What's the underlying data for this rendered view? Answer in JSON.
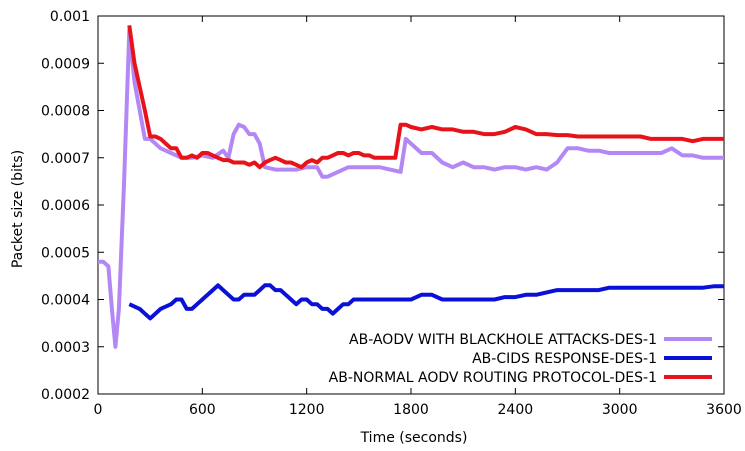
{
  "chart_data": {
    "type": "line",
    "xlabel": "Time (seconds)",
    "ylabel": "Packet size (bits)",
    "xlim": [
      0,
      3600
    ],
    "ylim": [
      0.0002,
      0.001
    ],
    "xticks": [
      0,
      600,
      1200,
      1800,
      2400,
      3000,
      3600
    ],
    "yticks": [
      0.0002,
      0.0003,
      0.0004,
      0.0005,
      0.0006,
      0.0007,
      0.0008,
      0.0009,
      0.001
    ],
    "xtick_labels": [
      "0",
      "600",
      "1200",
      "1800",
      "2400",
      "3000",
      "3600"
    ],
    "ytick_labels": [
      "0.0002",
      "0.0003",
      "0.0004",
      "0.0005",
      "0.0006",
      "0.0007",
      "0.0008",
      "0.0009",
      "0.001"
    ],
    "grid": false,
    "legend_position": "bottom-right",
    "series": [
      {
        "name": "AB-AODV WITH BLACKHOLE ATTACKS-DES-1",
        "color": "#b388f5",
        "x": [
          0,
          30,
          60,
          80,
          100,
          120,
          150,
          180,
          210,
          240,
          270,
          300,
          360,
          420,
          480,
          540,
          600,
          660,
          720,
          750,
          780,
          810,
          840,
          870,
          900,
          930,
          960,
          1020,
          1080,
          1140,
          1200,
          1260,
          1290,
          1320,
          1380,
          1440,
          1500,
          1560,
          1620,
          1680,
          1740,
          1770,
          1800,
          1860,
          1920,
          1980,
          2040,
          2100,
          2160,
          2220,
          2280,
          2340,
          2400,
          2460,
          2520,
          2580,
          2640,
          2700,
          2760,
          2820,
          2880,
          2940,
          3000,
          3060,
          3120,
          3180,
          3240,
          3300,
          3360,
          3420,
          3480,
          3540,
          3600
        ],
        "y": [
          0.00048,
          0.00048,
          0.00047,
          0.00038,
          0.0003,
          0.00038,
          0.00065,
          0.00097,
          0.00086,
          0.0008,
          0.00074,
          0.00074,
          0.00072,
          0.00071,
          0.0007,
          0.0007,
          0.000705,
          0.0007,
          0.000715,
          0.0007,
          0.00075,
          0.00077,
          0.000765,
          0.00075,
          0.00075,
          0.00073,
          0.00068,
          0.000675,
          0.000675,
          0.000675,
          0.00068,
          0.00068,
          0.00066,
          0.00066,
          0.00067,
          0.00068,
          0.00068,
          0.00068,
          0.00068,
          0.000675,
          0.00067,
          0.00074,
          0.00073,
          0.00071,
          0.00071,
          0.00069,
          0.00068,
          0.00069,
          0.00068,
          0.00068,
          0.000675,
          0.00068,
          0.00068,
          0.000675,
          0.00068,
          0.000675,
          0.00069,
          0.00072,
          0.00072,
          0.000715,
          0.000715,
          0.00071,
          0.00071,
          0.00071,
          0.00071,
          0.00071,
          0.00071,
          0.00072,
          0.000705,
          0.000705,
          0.0007,
          0.0007,
          0.0007
        ]
      },
      {
        "name": "AB-CIDS RESPONSE-DES-1",
        "color": "#0b10d8",
        "x": [
          180,
          240,
          270,
          300,
          330,
          360,
          420,
          450,
          480,
          510,
          540,
          570,
          600,
          630,
          660,
          690,
          720,
          750,
          780,
          810,
          840,
          870,
          900,
          930,
          960,
          990,
          1020,
          1050,
          1080,
          1110,
          1140,
          1170,
          1200,
          1230,
          1260,
          1290,
          1320,
          1350,
          1380,
          1410,
          1440,
          1470,
          1500,
          1530,
          1560,
          1590,
          1620,
          1650,
          1680,
          1740,
          1800,
          1860,
          1920,
          1980,
          2040,
          2100,
          2160,
          2220,
          2280,
          2340,
          2400,
          2460,
          2520,
          2580,
          2640,
          2700,
          2760,
          2820,
          2880,
          2940,
          3000,
          3060,
          3120,
          3180,
          3240,
          3300,
          3360,
          3420,
          3480,
          3540,
          3600
        ],
        "y": [
          0.00039,
          0.00038,
          0.00037,
          0.00036,
          0.00037,
          0.00038,
          0.00039,
          0.0004,
          0.0004,
          0.00038,
          0.00038,
          0.00039,
          0.0004,
          0.00041,
          0.00042,
          0.00043,
          0.00042,
          0.00041,
          0.0004,
          0.0004,
          0.00041,
          0.00041,
          0.00041,
          0.00042,
          0.00043,
          0.00043,
          0.00042,
          0.00042,
          0.00041,
          0.0004,
          0.00039,
          0.0004,
          0.0004,
          0.00039,
          0.00039,
          0.00038,
          0.00038,
          0.00037,
          0.00038,
          0.00039,
          0.00039,
          0.0004,
          0.0004,
          0.0004,
          0.0004,
          0.0004,
          0.0004,
          0.0004,
          0.0004,
          0.0004,
          0.0004,
          0.00041,
          0.00041,
          0.0004,
          0.0004,
          0.0004,
          0.0004,
          0.0004,
          0.0004,
          0.000405,
          0.000405,
          0.00041,
          0.00041,
          0.000415,
          0.00042,
          0.00042,
          0.00042,
          0.00042,
          0.00042,
          0.000425,
          0.000425,
          0.000425,
          0.000425,
          0.000425,
          0.000425,
          0.000425,
          0.000425,
          0.000425,
          0.000425,
          0.000428,
          0.000428
        ]
      },
      {
        "name": "AB-NORMAL AODV ROUTING PROTOCOL-DES-1",
        "color": "#e8131a",
        "x": [
          180,
          210,
          240,
          270,
          300,
          330,
          360,
          390,
          420,
          450,
          480,
          510,
          540,
          570,
          600,
          630,
          660,
          690,
          720,
          750,
          780,
          810,
          840,
          870,
          900,
          930,
          960,
          990,
          1020,
          1050,
          1080,
          1110,
          1140,
          1170,
          1200,
          1230,
          1260,
          1290,
          1320,
          1350,
          1380,
          1410,
          1440,
          1470,
          1500,
          1530,
          1560,
          1590,
          1620,
          1650,
          1680,
          1710,
          1740,
          1770,
          1800,
          1860,
          1920,
          1980,
          2040,
          2100,
          2160,
          2220,
          2280,
          2340,
          2400,
          2460,
          2520,
          2580,
          2640,
          2700,
          2760,
          2820,
          2880,
          2940,
          3000,
          3060,
          3120,
          3180,
          3240,
          3300,
          3360,
          3420,
          3480,
          3540,
          3600
        ],
        "y": [
          0.00098,
          0.0009,
          0.00085,
          0.0008,
          0.000745,
          0.000745,
          0.00074,
          0.00073,
          0.00072,
          0.00072,
          0.0007,
          0.0007,
          0.000705,
          0.0007,
          0.00071,
          0.00071,
          0.000705,
          0.0007,
          0.000695,
          0.000695,
          0.00069,
          0.00069,
          0.00069,
          0.000685,
          0.00069,
          0.00068,
          0.00069,
          0.000695,
          0.0007,
          0.000695,
          0.00069,
          0.00069,
          0.000685,
          0.00068,
          0.00069,
          0.000695,
          0.00069,
          0.0007,
          0.0007,
          0.000705,
          0.00071,
          0.00071,
          0.000705,
          0.00071,
          0.00071,
          0.000705,
          0.000705,
          0.0007,
          0.0007,
          0.0007,
          0.0007,
          0.0007,
          0.00077,
          0.00077,
          0.000765,
          0.00076,
          0.000765,
          0.00076,
          0.00076,
          0.000755,
          0.000755,
          0.00075,
          0.00075,
          0.000755,
          0.000765,
          0.00076,
          0.00075,
          0.00075,
          0.000748,
          0.000748,
          0.000745,
          0.000745,
          0.000745,
          0.000745,
          0.000745,
          0.000745,
          0.000745,
          0.00074,
          0.00074,
          0.00074,
          0.00074,
          0.000735,
          0.00074,
          0.00074,
          0.00074
        ]
      }
    ]
  }
}
